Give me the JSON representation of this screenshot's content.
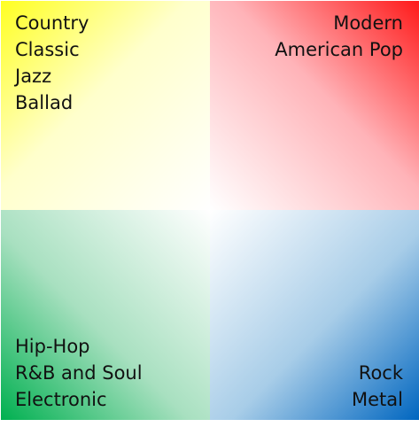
{
  "quadrants": {
    "top_left": {
      "color": "#ffff22",
      "lines": [
        "Country",
        "Classic",
        "Jazz",
        "Ballad"
      ]
    },
    "top_right": {
      "color": "#ff1a1a",
      "lines": [
        "Modern",
        "American Pop"
      ]
    },
    "bottom_left": {
      "color": "#00b050",
      "lines": [
        "Hip-Hop",
        "R&B and Soul",
        "Electronic"
      ]
    },
    "bottom_right": {
      "color": "#0066c0",
      "lines": [
        "Rock",
        "Metal"
      ]
    }
  }
}
